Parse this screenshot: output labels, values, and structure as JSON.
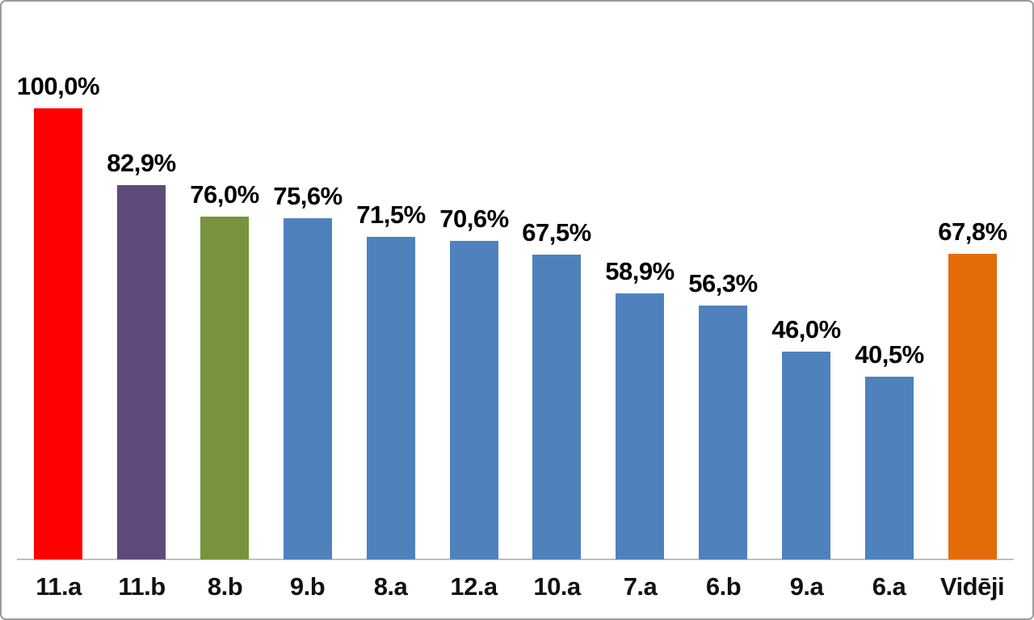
{
  "chart_data": {
    "type": "bar",
    "categories": [
      "11.a",
      "11.b",
      "8.b",
      "9.b",
      "8.a",
      "12.a",
      "10.a",
      "7.a",
      "6.b",
      "9.a",
      "6.a",
      "Vidēji"
    ],
    "values": [
      100.0,
      82.9,
      76.0,
      75.6,
      71.5,
      70.6,
      67.5,
      58.9,
      56.3,
      46.0,
      40.5,
      67.8
    ],
    "value_labels": [
      "100,0%",
      "82,9%",
      "76,0%",
      "75,6%",
      "71,5%",
      "70,6%",
      "67,5%",
      "58,9%",
      "56,3%",
      "46,0%",
      "40,5%",
      "67,8%"
    ],
    "bar_colors": [
      "#ff0000",
      "#604a7b",
      "#77933c",
      "#4f81bd",
      "#4f81bd",
      "#4f81bd",
      "#4f81bd",
      "#4f81bd",
      "#4f81bd",
      "#4f81bd",
      "#4f81bd",
      "#e36c09"
    ],
    "title": "",
    "xlabel": "",
    "ylabel": "",
    "ylim": [
      0,
      100
    ],
    "grid": false,
    "legend": false,
    "decimal_separator": ",",
    "axis_line_color": "#bfbfbf",
    "label_color": "#000000",
    "background_color": "#ffffff",
    "frame_border_color": "#9a9a9a"
  }
}
